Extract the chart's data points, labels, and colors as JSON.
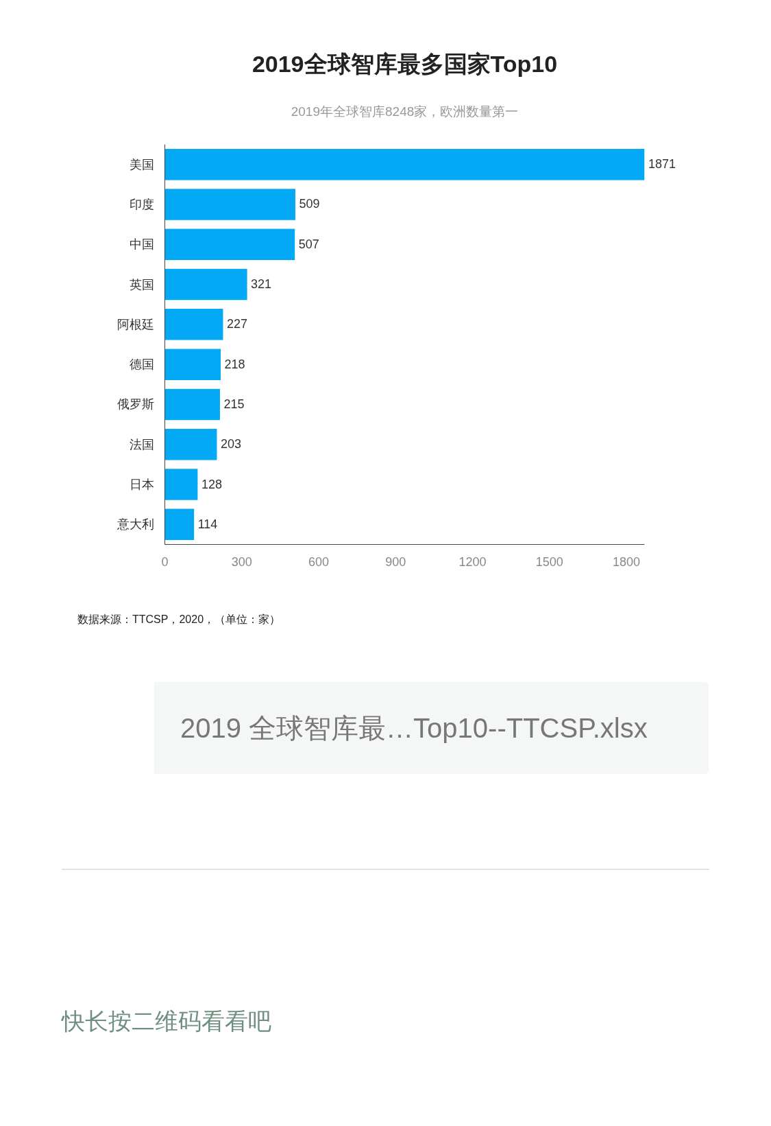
{
  "chart_data": {
    "type": "bar",
    "orientation": "horizontal",
    "title": "2019全球智库最多国家Top10",
    "subtitle": "2019年全球智库8248家，欧洲数量第一",
    "categories": [
      "美国",
      "印度",
      "中国",
      "英国",
      "阿根廷",
      "德国",
      "俄罗斯",
      "法国",
      "日本",
      "意大利"
    ],
    "values": [
      1871,
      509,
      507,
      321,
      227,
      218,
      215,
      203,
      128,
      114
    ],
    "color": "#03a9f4",
    "xlim": [
      0,
      1871
    ],
    "xticks": [
      0,
      300,
      600,
      900,
      1200,
      1500,
      1800
    ],
    "data_labels": true,
    "annotations": [
      "数据来源：TTCSP，2020，（单位：家）",
      "2019 全球智库最…Top10--TTCSP.xlsx",
      "快长按二维码看看吧"
    ]
  }
}
